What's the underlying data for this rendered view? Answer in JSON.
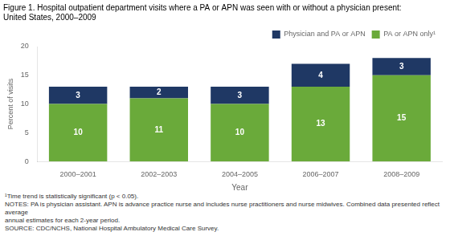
{
  "chart_data": {
    "type": "bar",
    "title": "Figure 1. Hospital outpatient department visits where a PA or APN was seen with or without a physician present:",
    "subtitle": "United States, 2000–2009",
    "xlabel": "Year",
    "ylabel": "Percent of visits",
    "categories": [
      "2000–2001",
      "2002–2003",
      "2004–2005",
      "2006–2007",
      "2008–2009"
    ],
    "series": [
      {
        "name": "PA or APN only¹",
        "color": "#6aaa3a",
        "values": [
          10,
          11,
          10,
          13,
          15
        ]
      },
      {
        "name": "Physician and PA or APN",
        "color": "#1f3864",
        "values": [
          3,
          2,
          3,
          4,
          3
        ]
      }
    ],
    "stacked": true,
    "data_labels": true,
    "ylim": [
      0,
      20
    ],
    "yticks": [
      0,
      5,
      10,
      15,
      20
    ],
    "grid": false,
    "legend": "upper right",
    "annotations": [
      "¹Time trend is statistically significant (p < 0.05).",
      "NOTES: PA is physician assistant. APN is advance practice nurse and includes nurse practitioners and nurse midwives. Combined data presented reflect average",
      "annual estimates for each 2-year period.",
      "SOURCE: CDC/NCHS, National Hospital Ambulatory Medical Care Survey."
    ]
  }
}
